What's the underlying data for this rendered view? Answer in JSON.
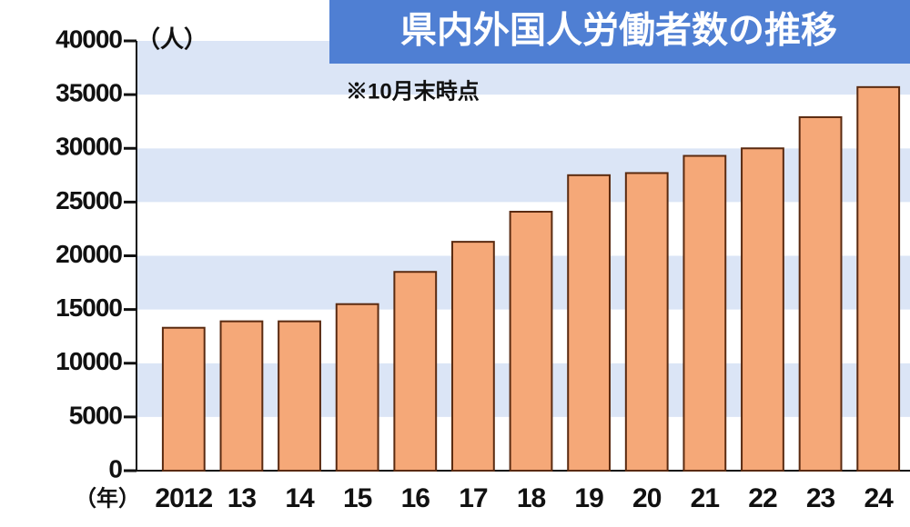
{
  "chart_data": {
    "type": "bar",
    "title": "県内外国人労働者数の推移",
    "subtitle": "※10月末時点",
    "y_unit": "（人）",
    "x_unit": "（年）",
    "categories": [
      "2012",
      "13",
      "14",
      "15",
      "16",
      "17",
      "18",
      "19",
      "20",
      "21",
      "22",
      "23",
      "24"
    ],
    "values": [
      13300,
      13900,
      13900,
      15500,
      18500,
      21300,
      24100,
      27500,
      27700,
      29300,
      30000,
      32900,
      35700
    ],
    "color": "#f5a878",
    "edge_color": "#5a2a10",
    "ylim": [
      0,
      40000
    ],
    "yticks": [
      0,
      5000,
      10000,
      15000,
      20000,
      25000,
      30000,
      35000,
      40000
    ],
    "grid": "stripes",
    "stripe_color": "#dbe5f6",
    "title_box_color": "#4f7fd3"
  }
}
